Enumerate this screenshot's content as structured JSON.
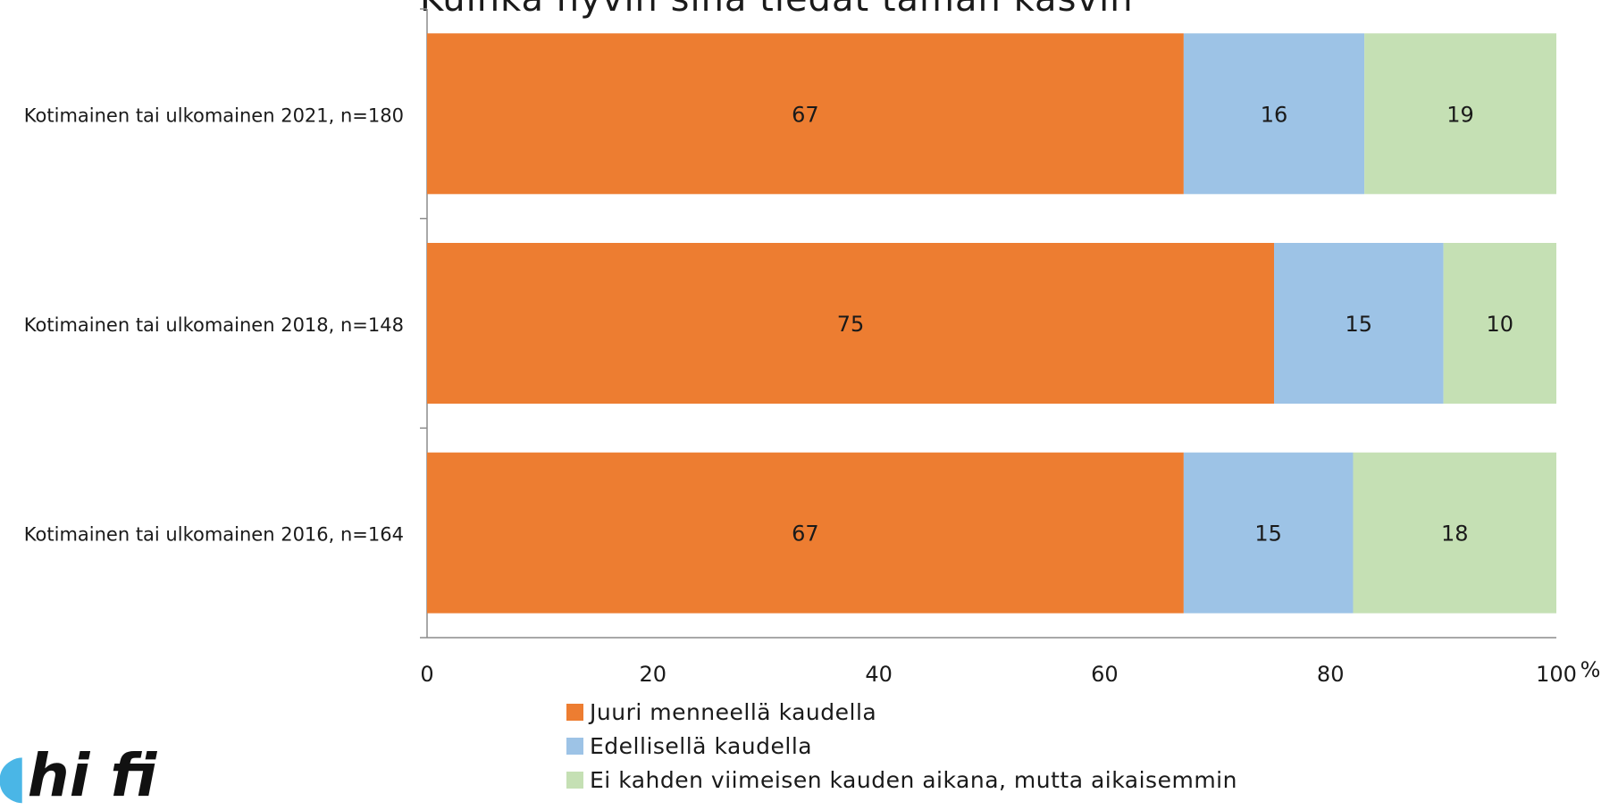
{
  "title": "Kuinka hyvin sinä tiedät tämän kasvin",
  "logo": {
    "text": "hi fi",
    "accent_color": "#4ab6e6"
  },
  "chart_data": {
    "type": "bar",
    "orientation": "horizontal",
    "stacked": true,
    "categories": [
      "Kotimainen tai ulkomainen 2021, n=180",
      "Kotimainen tai ulkomainen 2018, n=148",
      "Kotimainen tai ulkomainen 2016, n=164"
    ],
    "series": [
      {
        "name": "Juuri menneellä kaudella",
        "color": "#ED7D31",
        "values": [
          67,
          75,
          67
        ]
      },
      {
        "name": "Edellisellä kaudella",
        "color": "#9DC3E6",
        "values": [
          16,
          15,
          15
        ]
      },
      {
        "name": "Ei kahden viimeisen kauden aikana, mutta aikaisemmin",
        "color": "#C5E0B4",
        "values": [
          19,
          10,
          18
        ]
      }
    ],
    "xlim": [
      0,
      100
    ],
    "xticks": [
      0,
      20,
      40,
      60,
      80,
      100
    ],
    "xunit": "%",
    "grid": false,
    "legend_position": "bottom"
  }
}
